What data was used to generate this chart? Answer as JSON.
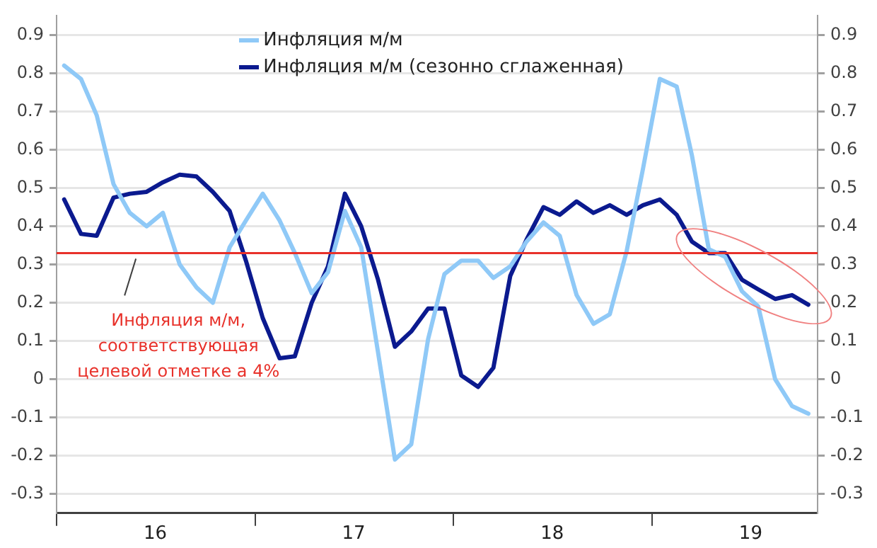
{
  "chart_data": {
    "type": "line",
    "x": [
      "2016-01-15",
      "2016-02-15",
      "2016-03-15",
      "2016-04-15",
      "2016-05-15",
      "2016-06-15",
      "2016-07-15",
      "2016-08-15",
      "2016-09-15",
      "2016-10-15",
      "2016-11-15",
      "2016-12-15",
      "2017-01-15",
      "2017-02-15",
      "2017-03-15",
      "2017-04-15",
      "2017-05-15",
      "2017-06-15",
      "2017-07-15",
      "2017-08-15",
      "2017-09-15",
      "2017-10-15",
      "2017-11-15",
      "2017-12-15",
      "2018-01-15",
      "2018-02-15",
      "2018-03-15",
      "2018-04-15",
      "2018-05-15",
      "2018-06-15",
      "2018-07-15",
      "2018-08-15",
      "2018-09-15",
      "2018-10-15",
      "2018-11-15",
      "2018-12-15",
      "2019-01-15",
      "2019-02-15",
      "2019-03-15",
      "2019-04-15",
      "2019-05-15",
      "2019-06-15",
      "2019-07-15",
      "2019-08-15",
      "2019-09-15",
      "2019-10-15"
    ],
    "series": [
      {
        "name": "Инфляция м/м",
        "color": "#8fc9f7",
        "values": [
          0.82,
          0.785,
          0.69,
          0.51,
          0.435,
          0.4,
          0.435,
          0.3,
          0.24,
          0.2,
          0.345,
          0.415,
          0.485,
          0.415,
          0.33,
          0.225,
          0.28,
          0.44,
          0.345,
          0.07,
          -0.21,
          -0.17,
          0.105,
          0.275,
          0.31,
          0.31,
          0.265,
          0.295,
          0.36,
          0.41,
          0.375,
          0.22,
          0.145,
          0.17,
          0.335,
          0.55,
          0.785,
          0.765,
          0.585,
          0.34,
          0.32,
          0.23,
          0.19,
          0.0,
          -0.07,
          -0.09
        ]
      },
      {
        "name": "Инфляция м/м (сезонно сглаженная)",
        "color": "#0b1a8f",
        "values": [
          0.47,
          0.38,
          0.375,
          0.475,
          0.485,
          0.49,
          0.515,
          0.535,
          0.53,
          0.49,
          0.44,
          0.31,
          0.16,
          0.055,
          0.06,
          0.2,
          0.295,
          0.485,
          0.4,
          0.26,
          0.085,
          0.125,
          0.185,
          0.185,
          0.01,
          -0.02,
          0.03,
          0.27,
          0.365,
          0.45,
          0.43,
          0.465,
          0.435,
          0.455,
          0.43,
          0.455,
          0.47,
          0.43,
          0.36,
          0.33,
          0.33,
          0.26,
          0.235,
          0.21,
          0.22,
          0.195
        ]
      }
    ],
    "xlim": [
      "2016-01-01",
      "2019-11-01"
    ],
    "xticks": [
      {
        "value": "2016-01-01",
        "label": null
      },
      {
        "value": "2016-07-01",
        "label": "16"
      },
      {
        "value": "2017-01-01",
        "label": null
      },
      {
        "value": "2017-07-01",
        "label": "17"
      },
      {
        "value": "2018-01-01",
        "label": null
      },
      {
        "value": "2018-07-01",
        "label": "18"
      },
      {
        "value": "2019-01-01",
        "label": null
      },
      {
        "value": "2019-07-01",
        "label": "19"
      }
    ],
    "ylim": [
      -0.35,
      0.95
    ],
    "yticks": [
      -0.3,
      -0.2,
      -0.1,
      0.0,
      0.1,
      0.2,
      0.3,
      0.4,
      0.5,
      0.6,
      0.7,
      0.8,
      0.9
    ],
    "y2lim": [
      -0.35,
      0.95
    ],
    "y2ticks": [
      -0.3,
      -0.2,
      -0.1,
      0.0,
      0.1,
      0.2,
      0.3,
      0.4,
      0.5,
      0.6,
      0.7,
      0.8,
      0.9
    ],
    "ref_lines": [
      {
        "axis": "y",
        "value": 0.33,
        "label": "Инфляция м/м,\nсоответствующая\nцелевой отметке а 4%",
        "color": "#e8312a"
      }
    ],
    "grid": "y",
    "legend": "top",
    "marker": "none",
    "line_style": "solid"
  }
}
